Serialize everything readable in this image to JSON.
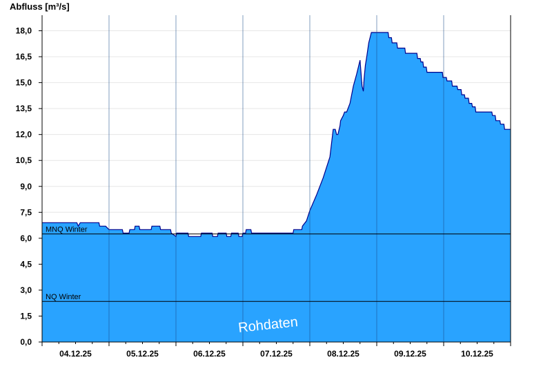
{
  "chart_data": {
    "type": "area",
    "ylabel": "Abfluss [m³/s]",
    "ylim": [
      0,
      18.9
    ],
    "yticks": [
      "0,0",
      "1,5",
      "3,0",
      "4,5",
      "6,0",
      "7,5",
      "9,0",
      "10,5",
      "12,0",
      "13,5",
      "15,0",
      "16,5",
      "18,0"
    ],
    "ytick_values": [
      0,
      1.5,
      3,
      4.5,
      6,
      7.5,
      9,
      10.5,
      12,
      13.5,
      15,
      16.5,
      18
    ],
    "xlim": [
      0,
      7
    ],
    "day_labels": [
      "04.12.25",
      "05.12.25",
      "06.12.25",
      "07.12.25",
      "08.12.25",
      "09.12.25",
      "10.12.25"
    ],
    "grid": true,
    "fill_color": "#29a3ff",
    "line_color": "#00008b",
    "reference_lines": [
      {
        "label": "MNQ Winter",
        "value": 6.25
      },
      {
        "label": "NQ Winter",
        "value": 2.35
      }
    ],
    "watermark": "Rohdaten",
    "series": [
      {
        "x": [
          0.0,
          0.52,
          0.54,
          0.57,
          0.85,
          0.86,
          0.95,
          1.0,
          1.2,
          1.21,
          1.3,
          1.31,
          1.38,
          1.39,
          1.45,
          1.46,
          1.63,
          1.64,
          1.76,
          1.77,
          1.92,
          1.93,
          2.0,
          2.01,
          2.18,
          2.19,
          2.37,
          2.38,
          2.54,
          2.55,
          2.62,
          2.63,
          2.75,
          2.76,
          2.82,
          2.83,
          2.93,
          2.94,
          2.99,
          3.0,
          3.04,
          3.05,
          3.12,
          3.13,
          3.75,
          3.76,
          3.88,
          3.89,
          3.95,
          4.0,
          4.1,
          4.2,
          4.3,
          4.35,
          4.38,
          4.4,
          4.42,
          4.45,
          4.46,
          4.5,
          4.52,
          4.55,
          4.6,
          4.65,
          4.7,
          4.75,
          4.78,
          4.8,
          4.81,
          4.83,
          4.85,
          4.88,
          4.92,
          4.97,
          5.0,
          5.01,
          5.17,
          5.18,
          5.22,
          5.23,
          5.3,
          5.31,
          5.42,
          5.43,
          5.6,
          5.61,
          5.65,
          5.66,
          5.69,
          5.7,
          5.74,
          5.75,
          5.77,
          5.78,
          5.98,
          5.99,
          6.04,
          6.05,
          6.12,
          6.13,
          6.2,
          6.21,
          6.26,
          6.27,
          6.31,
          6.32,
          6.37,
          6.38,
          6.42,
          6.43,
          6.47,
          6.48,
          6.72,
          6.73,
          6.77,
          6.78,
          6.84,
          6.85,
          6.9,
          6.91,
          6.94,
          6.95,
          7.0
        ],
        "y": [
          6.9,
          6.9,
          6.7,
          6.9,
          6.9,
          6.7,
          6.7,
          6.5,
          6.5,
          6.3,
          6.3,
          6.5,
          6.5,
          6.7,
          6.7,
          6.5,
          6.5,
          6.7,
          6.7,
          6.5,
          6.5,
          6.3,
          6.1,
          6.3,
          6.3,
          6.1,
          6.1,
          6.3,
          6.3,
          6.1,
          6.1,
          6.3,
          6.3,
          6.1,
          6.1,
          6.3,
          6.3,
          6.1,
          6.1,
          6.3,
          6.3,
          6.5,
          6.5,
          6.3,
          6.3,
          6.5,
          6.5,
          6.7,
          7.0,
          7.6,
          8.5,
          9.5,
          10.7,
          12.3,
          12.3,
          12.0,
          12.0,
          12.5,
          12.8,
          13.1,
          13.3,
          13.3,
          13.8,
          14.8,
          15.5,
          16.3,
          14.8,
          14.5,
          15.2,
          16.0,
          16.5,
          17.3,
          17.9,
          17.9,
          17.9,
          17.9,
          17.9,
          17.6,
          17.6,
          17.3,
          17.3,
          17.0,
          17.0,
          16.7,
          16.7,
          16.4,
          16.4,
          16.2,
          16.2,
          15.9,
          15.9,
          15.6,
          15.6,
          15.6,
          15.6,
          15.3,
          15.3,
          15.1,
          15.1,
          14.8,
          14.8,
          14.6,
          14.6,
          14.3,
          14.3,
          14.1,
          14.1,
          13.8,
          13.8,
          13.6,
          13.6,
          13.3,
          13.3,
          13.1,
          13.1,
          12.8,
          12.8,
          12.6,
          12.6,
          12.3,
          12.3,
          12.3,
          12.3
        ]
      }
    ]
  }
}
